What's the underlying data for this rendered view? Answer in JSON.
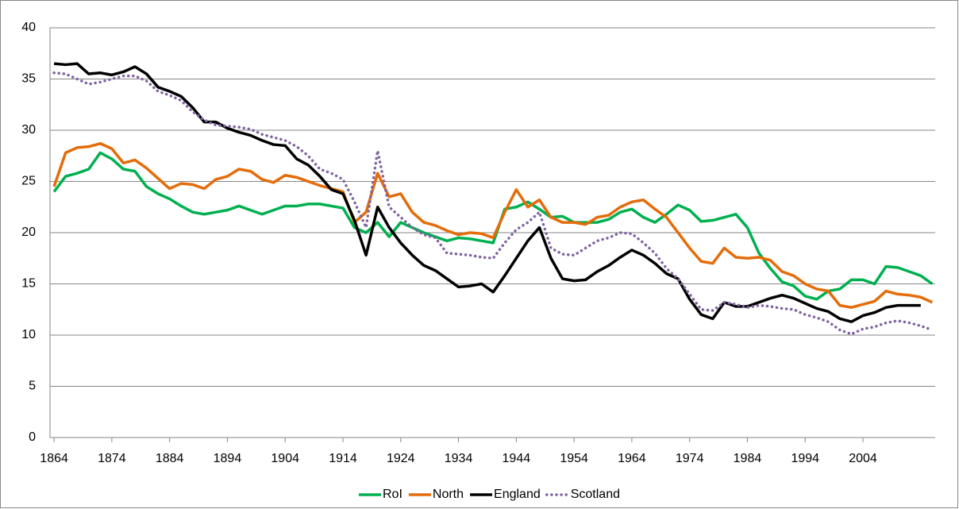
{
  "chart_data": {
    "type": "line",
    "x": [
      1864,
      1866,
      1868,
      1870,
      1872,
      1874,
      1876,
      1878,
      1880,
      1882,
      1884,
      1886,
      1888,
      1890,
      1892,
      1894,
      1896,
      1898,
      1900,
      1902,
      1904,
      1906,
      1908,
      1910,
      1912,
      1914,
      1916,
      1918,
      1920,
      1922,
      1924,
      1926,
      1928,
      1930,
      1932,
      1934,
      1936,
      1938,
      1940,
      1942,
      1944,
      1946,
      1948,
      1950,
      1952,
      1954,
      1956,
      1958,
      1960,
      1962,
      1964,
      1966,
      1968,
      1970,
      1972,
      1974,
      1976,
      1978,
      1980,
      1982,
      1984,
      1986,
      1988,
      1990,
      1992,
      1994,
      1996,
      1998,
      2000,
      2002,
      2004,
      2006,
      2008,
      2010,
      2012,
      2014,
      2016
    ],
    "series": [
      {
        "name": "RoI",
        "color": "#00b050",
        "dash": false,
        "values": [
          24,
          25.5,
          25.8,
          26.2,
          27.8,
          27.2,
          26.2,
          26,
          24.5,
          23.8,
          23.3,
          22.6,
          22,
          21.8,
          22,
          22.2,
          22.6,
          22.2,
          21.8,
          22.2,
          22.6,
          22.6,
          22.8,
          22.8,
          22.6,
          22.4,
          20.5,
          20,
          21,
          19.6,
          21,
          20.5,
          20,
          19.6,
          19.2,
          19.5,
          19.4,
          19.2,
          19,
          22.3,
          22.5,
          23,
          22.3,
          21.5,
          21.6,
          21,
          21,
          21,
          21.3,
          22,
          22.3,
          21.5,
          21,
          21.8,
          22.7,
          22.2,
          21.1,
          21.2,
          21.5,
          21.8,
          20.5,
          18,
          16.5,
          15.2,
          14.8,
          13.8,
          13.5,
          14.3,
          14.5,
          15.4,
          15.4,
          15,
          16.7,
          16.6,
          16.2,
          15.8,
          15
        ]
      },
      {
        "name": "North",
        "color": "#e46c0a",
        "dash": false,
        "values": [
          24.5,
          27.8,
          28.3,
          28.4,
          28.7,
          28.2,
          26.8,
          27.1,
          26.3,
          25.3,
          24.3,
          24.8,
          24.7,
          24.3,
          25.2,
          25.5,
          26.2,
          26,
          25.2,
          24.9,
          25.6,
          25.4,
          25,
          24.6,
          24.3,
          24,
          21,
          22,
          25.8,
          23.5,
          23.8,
          22,
          21,
          20.7,
          20.2,
          19.8,
          20,
          19.9,
          19.5,
          22,
          24.2,
          22.5,
          23.2,
          21.5,
          21,
          21,
          20.8,
          21.5,
          21.7,
          22.5,
          23,
          23.2,
          22.3,
          21.5,
          20,
          18.5,
          17.2,
          17,
          18.5,
          17.6,
          17.5,
          17.6,
          17.3,
          16.2,
          15.8,
          15,
          14.5,
          14.3,
          12.9,
          12.7,
          13,
          13.3,
          14.3,
          14,
          13.9,
          13.7,
          13.2
        ]
      },
      {
        "name": "England",
        "color": "#000000",
        "dash": false,
        "values": [
          36.5,
          36.4,
          36.5,
          35.5,
          35.6,
          35.4,
          35.7,
          36.2,
          35.5,
          34.2,
          33.8,
          33.3,
          32.2,
          30.8,
          30.8,
          30.2,
          29.8,
          29.5,
          29,
          28.6,
          28.5,
          27.2,
          26.6,
          25.5,
          24.2,
          23.8,
          21.2,
          17.8,
          22.5,
          20.5,
          19,
          17.8,
          16.8,
          16.3,
          15.5,
          14.7,
          14.8,
          15,
          14.2,
          15.8,
          17.5,
          19.2,
          20.5,
          17.5,
          15.5,
          15.3,
          15.4,
          16.2,
          16.8,
          17.6,
          18.3,
          17.8,
          17,
          16,
          15.5,
          13.5,
          12,
          11.6,
          13.2,
          12.8,
          12.8,
          13.2,
          13.6,
          13.9,
          13.6,
          13.1,
          12.6,
          12.3,
          11.6,
          11.3,
          11.9,
          12.2,
          12.7,
          12.9,
          12.9,
          12.9,
          null
        ]
      },
      {
        "name": "Scotland",
        "color": "#8064a2",
        "dash": true,
        "values": [
          35.6,
          35.5,
          35,
          34.5,
          34.7,
          35,
          35.3,
          35.3,
          34.8,
          33.8,
          33.4,
          32.9,
          31.8,
          31,
          30.5,
          30.4,
          30.3,
          30.1,
          29.6,
          29.3,
          29,
          28.4,
          27.5,
          26.2,
          25.8,
          25.2,
          23,
          20.5,
          28,
          22.5,
          21.5,
          20.5,
          19.8,
          19.5,
          18,
          17.9,
          17.8,
          17.6,
          17.5,
          19,
          20.3,
          21,
          22,
          18.5,
          17.9,
          17.8,
          18.5,
          19.2,
          19.5,
          20,
          19.9,
          19,
          18,
          16.5,
          15.5,
          14,
          12.5,
          12.4,
          13.2,
          13,
          12.7,
          12.9,
          12.8,
          12.6,
          12.5,
          12,
          11.7,
          11.3,
          10.5,
          10.1,
          10.6,
          10.8,
          11.2,
          11.4,
          11.2,
          10.9,
          10.5
        ]
      }
    ],
    "xlim": [
      1863.3,
      2016.5
    ],
    "xticks": [
      1864,
      1874,
      1884,
      1894,
      1904,
      1914,
      1924,
      1934,
      1944,
      1954,
      1964,
      1974,
      1984,
      1994,
      2004
    ],
    "ylim": [
      0,
      40
    ],
    "yticks": [
      0,
      5,
      10,
      15,
      20,
      25,
      30,
      35,
      40
    ],
    "grid": true,
    "legend": "bottom"
  }
}
